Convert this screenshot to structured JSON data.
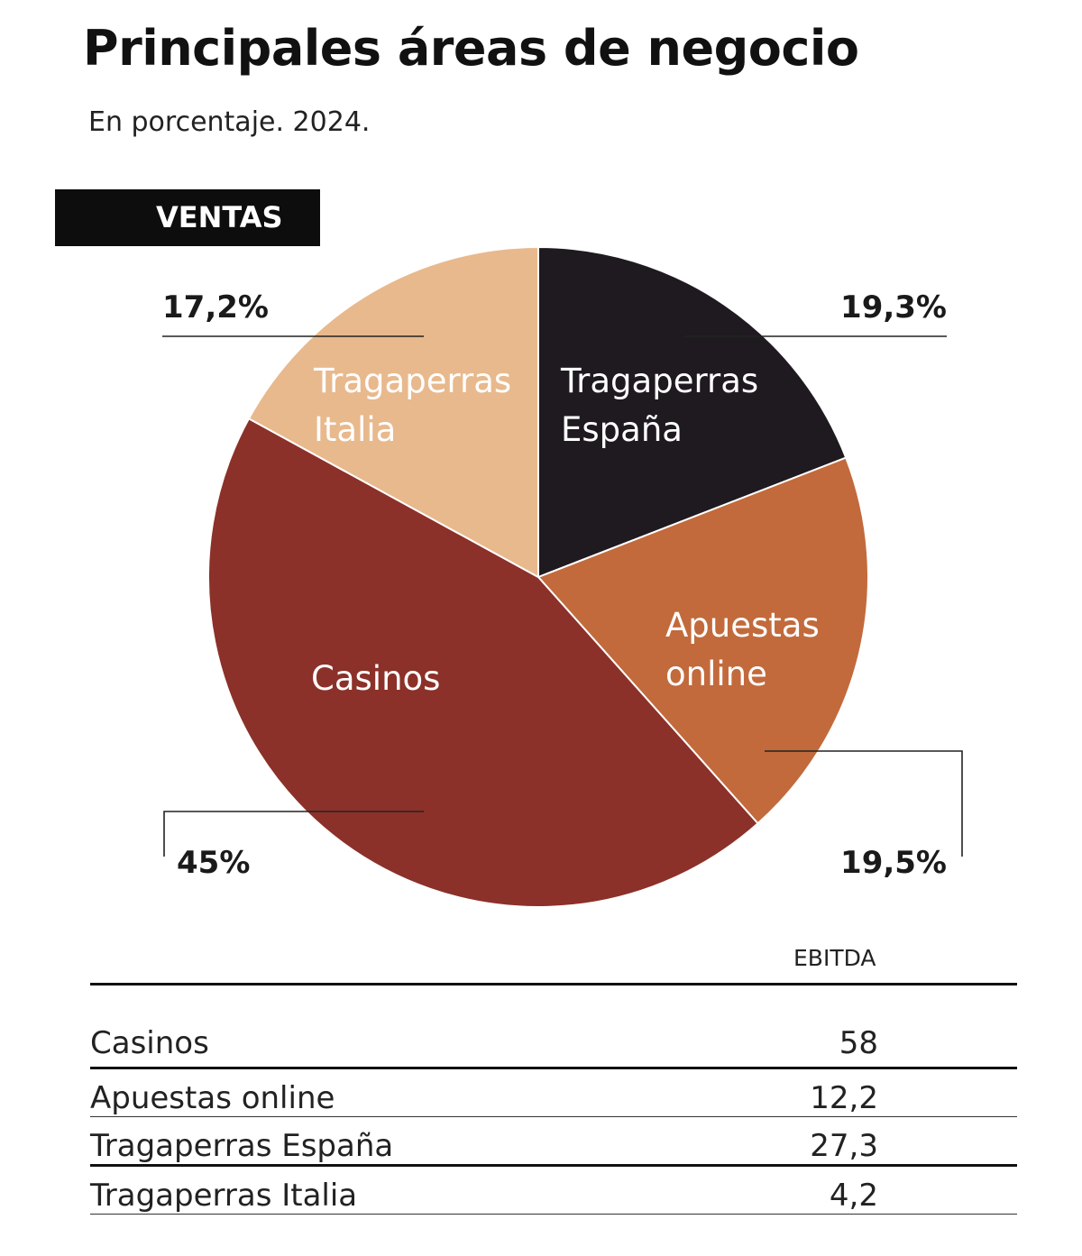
{
  "header": {
    "title": "Principales áreas de negocio",
    "subtitle": "En porcentaje. 2024."
  },
  "section": {
    "label": "VENTAS"
  },
  "chart_data": {
    "type": "pie",
    "title": "Principales áreas de negocio",
    "subtitle": "En porcentaje. 2024.",
    "slices": [
      {
        "name_line1": "Tragaperras",
        "name_line2": "España",
        "value": 19.3,
        "value_label": "19,3%",
        "color": "#1e1a1f"
      },
      {
        "name_line1": "Apuestas",
        "name_line2": "online",
        "value": 19.5,
        "value_label": "19,5%",
        "color": "#c26a3c"
      },
      {
        "name_line1": "Casinos",
        "name_line2": "",
        "value": 45,
        "value_label": "45%",
        "color": "#8b3129"
      },
      {
        "name_line1": "Tragaperras",
        "name_line2": "Italia",
        "value": 17.2,
        "value_label": "17,2%",
        "color": "#e8b98d"
      }
    ]
  },
  "table": {
    "column_header": "EBITDA",
    "rows": [
      {
        "label": "Casinos",
        "value": "58"
      },
      {
        "label": "Apuestas online",
        "value": "12,2"
      },
      {
        "label": "Tragaperras España",
        "value": "27,3"
      },
      {
        "label": "Tragaperras Italia",
        "value": "4,2"
      }
    ]
  }
}
